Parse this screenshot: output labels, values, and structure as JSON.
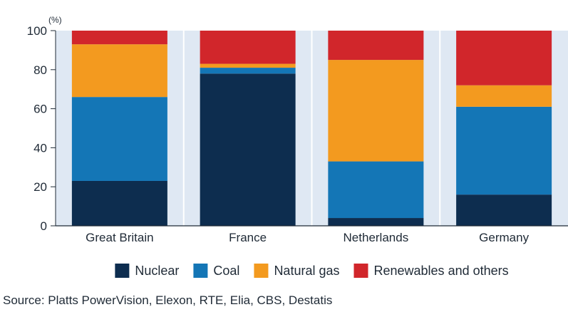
{
  "chart_data": {
    "type": "bar",
    "stacked": true,
    "unit_label": "(%)",
    "categories": [
      "Great Britain",
      "France",
      "Netherlands",
      "Germany"
    ],
    "ylim": [
      0,
      100
    ],
    "yticks": [
      0,
      20,
      40,
      60,
      80,
      100
    ],
    "grid": false,
    "legend_position": "bottom",
    "series": [
      {
        "name": "Nuclear",
        "color": "#0d2d4f",
        "values": [
          23,
          78,
          4,
          16
        ]
      },
      {
        "name": "Coal",
        "color": "#1476b6",
        "values": [
          43,
          3,
          29,
          45
        ]
      },
      {
        "name": "Natural gas",
        "color": "#f39a1f",
        "values": [
          27,
          2,
          52,
          11
        ]
      },
      {
        "name": "Renewables and others",
        "color": "#d1262b",
        "values": [
          7,
          17,
          15,
          28
        ]
      }
    ],
    "source": "Source: Platts PowerVision, Elexon, RTE, Elia, CBS, Destatis"
  },
  "colors": {
    "plot_background": "#dfe8f3",
    "axis": "#1f2a36"
  }
}
